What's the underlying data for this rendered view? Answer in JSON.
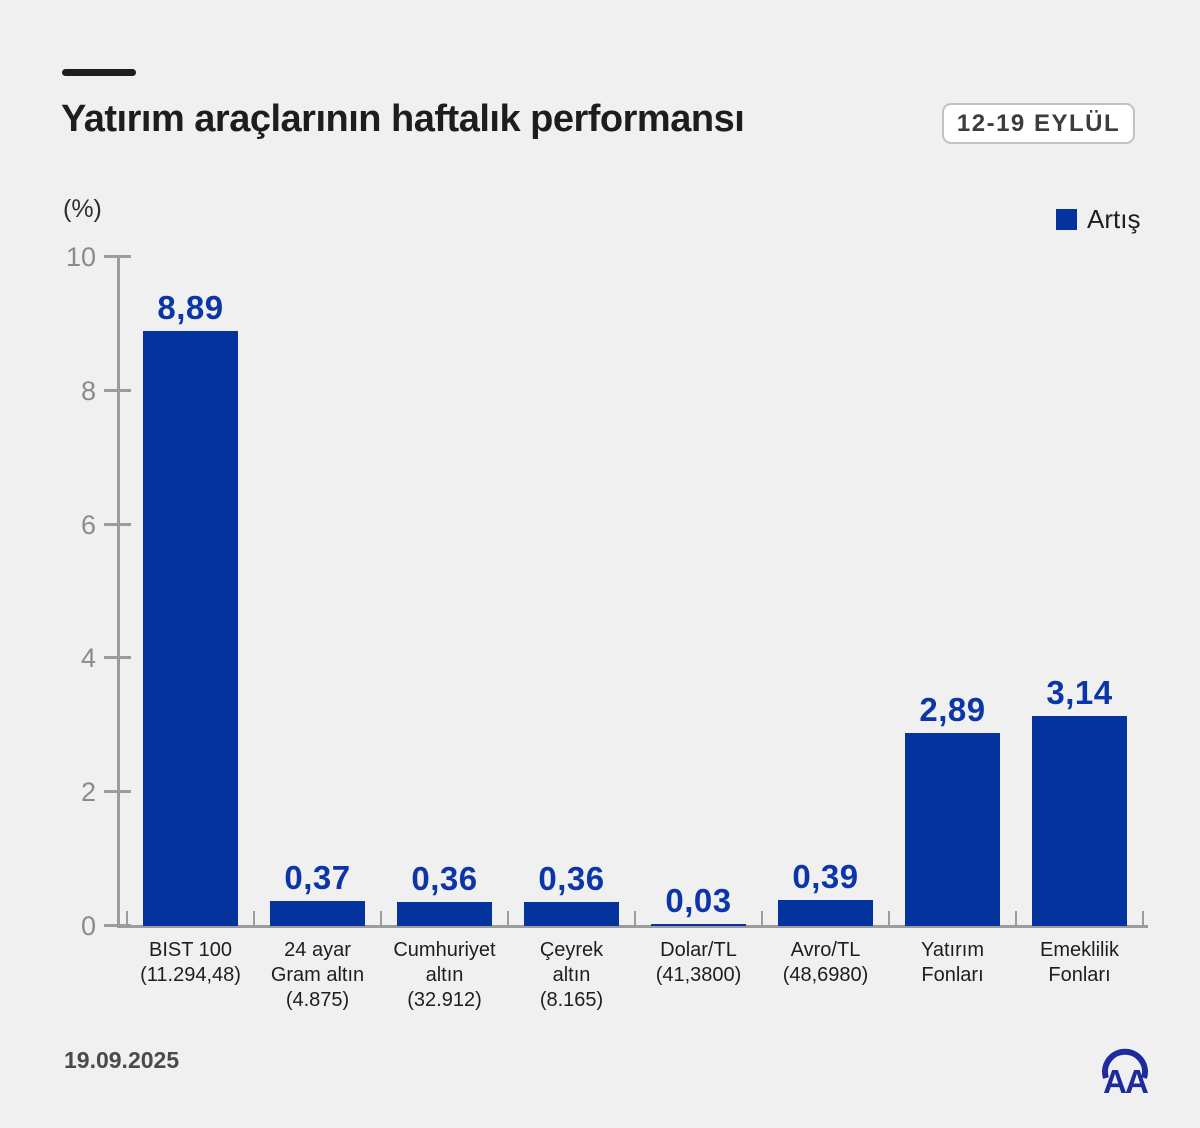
{
  "header": {
    "title": "Yatırım araçlarının haftalık performansı",
    "date_badge": "12-19 EYLÜL"
  },
  "chart_data": {
    "type": "bar",
    "title": "Yatırım araçlarının haftalık performansı",
    "period_badge": "12-19 EYLÜL",
    "ylabel": "(%)",
    "xlabel": "",
    "ylim": [
      0,
      10
    ],
    "yticks": [
      0,
      2,
      4,
      6,
      8,
      10
    ],
    "grid": false,
    "legend": {
      "label": "Artış",
      "position": "top-right",
      "color": "#04339e"
    },
    "bar_color": "#04339e",
    "value_label_color": "#0c36a8",
    "categories": [
      {
        "label_lines": [
          "BIST 100",
          "(11.294,48)"
        ],
        "value": 8.89,
        "value_label": "8,89"
      },
      {
        "label_lines": [
          "24 ayar",
          "Gram altın",
          "(4.875)"
        ],
        "value": 0.37,
        "value_label": "0,37"
      },
      {
        "label_lines": [
          "Cumhuriyet",
          "altın",
          "(32.912)"
        ],
        "value": 0.36,
        "value_label": "0,36"
      },
      {
        "label_lines": [
          "Çeyrek",
          "altın",
          "(8.165)"
        ],
        "value": 0.36,
        "value_label": "0,36"
      },
      {
        "label_lines": [
          "Dolar/TL",
          "(41,3800)"
        ],
        "value": 0.03,
        "value_label": "0,03"
      },
      {
        "label_lines": [
          "Avro/TL",
          "(48,6980)"
        ],
        "value": 0.39,
        "value_label": "0,39"
      },
      {
        "label_lines": [
          "Yatırım",
          "Fonları"
        ],
        "value": 2.89,
        "value_label": "2,89"
      },
      {
        "label_lines": [
          "Emeklilik",
          "Fonları"
        ],
        "value": 3.14,
        "value_label": "3,14"
      }
    ]
  },
  "footer": {
    "date": "19.09.2025",
    "logo_text": "AA"
  }
}
